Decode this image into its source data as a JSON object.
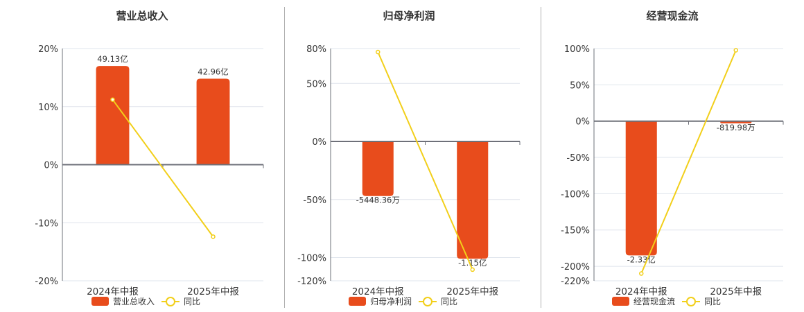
{
  "colors": {
    "bar": "#e84c1c",
    "line": "#f2cf1a",
    "grid": "#dfe4ec",
    "axis": "#6e7079"
  },
  "legend": {
    "yoy_label": "同比"
  },
  "chart_data": [
    {
      "type": "bar+line",
      "title": "营业总收入",
      "categories": [
        "2024年中报",
        "2025年中报"
      ],
      "yticks": [
        "20%",
        "10%",
        "0%",
        "-10%",
        "-20%"
      ],
      "ylim": [
        -20,
        20
      ],
      "tick_values": [
        20,
        10,
        0,
        -10,
        -20
      ],
      "series": [
        {
          "name": "营业总收入",
          "kind": "bar",
          "values": [
            17,
            14.8
          ],
          "labels": [
            "49.13亿",
            "42.96亿"
          ]
        },
        {
          "name": "同比",
          "kind": "line",
          "values": [
            11.2,
            -12.4
          ]
        }
      ]
    },
    {
      "type": "bar+line",
      "title": "归母净利润",
      "categories": [
        "2024年中报",
        "2025年中报"
      ],
      "yticks": [
        "80%",
        "50%",
        "0%",
        "-50%",
        "-100%",
        "-120%"
      ],
      "ylim": [
        -120,
        80
      ],
      "tick_values": [
        80,
        50,
        0,
        -50,
        -100,
        -120
      ],
      "series": [
        {
          "name": "归母净利润",
          "kind": "bar",
          "values": [
            -47,
            -101
          ],
          "labels": [
            "-5448.36万",
            "-1.15亿"
          ]
        },
        {
          "name": "同比",
          "kind": "line",
          "values": [
            77,
            -110.4
          ]
        }
      ]
    },
    {
      "type": "bar+line",
      "title": "经营现金流",
      "categories": [
        "2024年中报",
        "2025年中报"
      ],
      "yticks": [
        "100%",
        "50%",
        "0%",
        "-50%",
        "-100%",
        "-150%",
        "-200%",
        "-220%"
      ],
      "ylim": [
        -220,
        100
      ],
      "tick_values": [
        100,
        50,
        0,
        -50,
        -100,
        -150,
        -200,
        -220
      ],
      "series": [
        {
          "name": "经营现金流",
          "kind": "bar",
          "values": [
            -185,
            -3
          ],
          "labels": [
            "-2.33亿",
            "-819.98万"
          ]
        },
        {
          "name": "同比",
          "kind": "line",
          "values": [
            -210,
            97.6
          ]
        }
      ]
    }
  ]
}
